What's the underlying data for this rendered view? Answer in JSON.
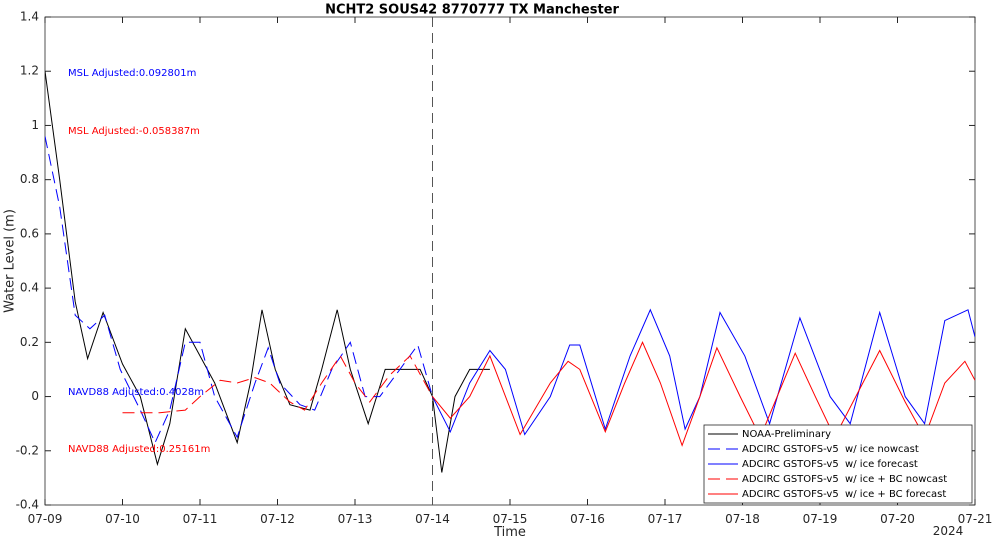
{
  "chart_data": {
    "type": "line",
    "title": "NCHT2 SOUS42 8770777 TX Manchester",
    "xlabel": "Time",
    "ylabel": "Water Level (m)",
    "xlim": [
      0,
      12
    ],
    "ylim": [
      -0.4,
      1.4
    ],
    "xticks": [
      {
        "value": 0,
        "label": "07-09"
      },
      {
        "value": 1,
        "label": "07-10"
      },
      {
        "value": 2,
        "label": "07-11"
      },
      {
        "value": 3,
        "label": "07-12"
      },
      {
        "value": 4,
        "label": "07-13"
      },
      {
        "value": 5,
        "label": "07-14"
      },
      {
        "value": 6,
        "label": "07-15"
      },
      {
        "value": 7,
        "label": "07-16"
      },
      {
        "value": 8,
        "label": "07-17"
      },
      {
        "value": 9,
        "label": "07-18"
      },
      {
        "value": 10,
        "label": "07-19"
      },
      {
        "value": 11,
        "label": "07-20"
      },
      {
        "value": 12,
        "label": "07-21"
      }
    ],
    "yticks": [
      -0.4,
      -0.2,
      0,
      0.2,
      0.4,
      0.6,
      0.8,
      1,
      1.2,
      1.4
    ],
    "year_label": "2024",
    "vline_x": 5,
    "legend": "lower right",
    "annotations": [
      {
        "text": "MSL Adjusted:0.092801m",
        "color": "#0000ff"
      },
      {
        "text": "MSL Adjusted:-0.058387m",
        "color": "#ff0000"
      },
      {
        "text": "NAVD88 Adjusted:0.4028m",
        "color": "#0000ff"
      },
      {
        "text": "NAVD88 Adjusted:0.25161m",
        "color": "#ff0000"
      }
    ],
    "series": [
      {
        "name": "NOAA-Preliminary",
        "color": "#000000",
        "dash": false,
        "x": [
          0,
          0.19,
          0.39,
          0.55,
          0.75,
          1.0,
          1.23,
          1.45,
          1.61,
          1.81,
          2.0,
          2.19,
          2.48,
          2.65,
          2.8,
          2.97,
          3.16,
          3.42,
          3.57,
          3.77,
          3.94,
          4.17,
          4.39,
          4.58,
          4.84,
          5.0,
          5.12,
          5.29,
          5.48,
          5.74
        ],
        "values": [
          1.2,
          0.8,
          0.35,
          0.14,
          0.31,
          0.12,
          0.0,
          -0.25,
          -0.1,
          0.25,
          0.15,
          0.05,
          -0.17,
          0.05,
          0.32,
          0.1,
          -0.03,
          -0.05,
          0.1,
          0.32,
          0.1,
          -0.1,
          0.1,
          0.1,
          0.1,
          0.0,
          -0.28,
          0.0,
          0.1,
          0.1
        ]
      },
      {
        "name": "ADCIRC GSTOFS-v5  w/ ice nowcast",
        "color": "#0000ff",
        "dash": true,
        "x": [
          0,
          0.19,
          0.39,
          0.58,
          0.77,
          0.97,
          1.23,
          1.42,
          1.61,
          1.81,
          2.0,
          2.19,
          2.48,
          2.71,
          2.88,
          3.03,
          3.29,
          3.48,
          3.7,
          3.94,
          4.13,
          4.32,
          4.58,
          4.81,
          5.0
        ],
        "values": [
          0.96,
          0.7,
          0.3,
          0.25,
          0.3,
          0.1,
          -0.05,
          -0.17,
          -0.05,
          0.2,
          0.2,
          0.0,
          -0.15,
          0.05,
          0.18,
          0.05,
          -0.03,
          -0.05,
          0.1,
          0.2,
          0.0,
          0.0,
          0.1,
          0.19,
          0.0
        ]
      },
      {
        "name": "ADCIRC GSTOFS-v5  w/ ice forecast",
        "color": "#0000ff",
        "dash": false,
        "x": [
          5.0,
          5.23,
          5.48,
          5.74,
          5.94,
          6.19,
          6.52,
          6.77,
          6.9,
          7.23,
          7.55,
          7.81,
          8.06,
          8.26,
          8.45,
          8.71,
          9.03,
          9.35,
          9.74,
          10.13,
          10.39,
          10.77,
          11.1,
          11.35,
          11.61,
          11.91,
          12.0
        ],
        "values": [
          0.0,
          -0.13,
          0.05,
          0.17,
          0.1,
          -0.14,
          0.0,
          0.19,
          0.19,
          -0.12,
          0.15,
          0.32,
          0.15,
          -0.12,
          0.0,
          0.31,
          0.15,
          -0.1,
          0.29,
          0.0,
          -0.1,
          0.31,
          0.0,
          -0.1,
          0.28,
          0.32,
          0.22
        ]
      },
      {
        "name": "ADCIRC GSTOFS-v5  w/ ice + BC nowcast",
        "color": "#ff0000",
        "dash": true,
        "x": [
          1.0,
          1.48,
          1.81,
          2.0,
          2.26,
          2.48,
          2.71,
          2.9,
          3.16,
          3.35,
          3.57,
          3.81,
          4.0,
          4.19,
          4.45,
          4.71,
          5.0
        ],
        "values": [
          -0.06,
          -0.06,
          -0.05,
          0.0,
          0.06,
          0.05,
          0.07,
          0.05,
          -0.02,
          -0.05,
          0.05,
          0.15,
          0.05,
          -0.02,
          0.08,
          0.15,
          0.0
        ]
      },
      {
        "name": "ADCIRC GSTOFS-v5  w/ ice + BC forecast",
        "color": "#ff0000",
        "dash": false,
        "x": [
          5.0,
          5.23,
          5.48,
          5.74,
          6.13,
          6.52,
          6.75,
          6.9,
          7.23,
          7.48,
          7.71,
          7.94,
          8.22,
          8.45,
          8.67,
          8.97,
          9.23,
          9.68,
          9.94,
          10.19,
          10.77,
          11.1,
          11.35,
          11.61,
          11.87,
          12.0
        ],
        "values": [
          0.0,
          -0.08,
          0.0,
          0.15,
          -0.14,
          0.05,
          0.13,
          0.1,
          -0.13,
          0.05,
          0.2,
          0.05,
          -0.18,
          0.0,
          0.18,
          0.0,
          -0.15,
          0.16,
          0.0,
          -0.15,
          0.17,
          -0.02,
          -0.15,
          0.05,
          0.13,
          0.06
        ]
      }
    ]
  }
}
